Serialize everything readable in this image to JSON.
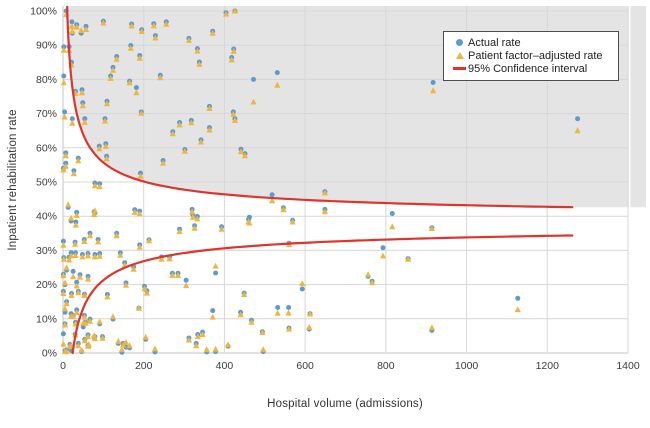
{
  "chart_data": {
    "type": "scatter",
    "xlabel": "Hospital volume (admissions)",
    "ylabel": "Inpatient rehabilitation rate",
    "xlim": [
      0,
      1400
    ],
    "ylim": [
      0,
      100
    ],
    "grid": true,
    "legend_position": "top-right",
    "x_ticks": [
      {
        "v": 0,
        "label": "0"
      },
      {
        "v": 200,
        "label": "200"
      },
      {
        "v": 400,
        "label": "400"
      },
      {
        "v": 600,
        "label": "600"
      },
      {
        "v": 800,
        "label": "800"
      },
      {
        "v": 1000,
        "label": "1000"
      },
      {
        "v": 1200,
        "label": "1200"
      },
      {
        "v": 1400,
        "label": "1400"
      }
    ],
    "y_ticks": [
      {
        "v": 0,
        "label": "0%"
      },
      {
        "v": 10,
        "label": "10%"
      },
      {
        "v": 20,
        "label": "20%"
      },
      {
        "v": 30,
        "label": "30%"
      },
      {
        "v": 40,
        "label": "40%"
      },
      {
        "v": 50,
        "label": "50%"
      },
      {
        "v": 60,
        "label": "60%"
      },
      {
        "v": 70,
        "label": "70%"
      },
      {
        "v": 80,
        "label": "80%"
      },
      {
        "v": 90,
        "label": "90%"
      },
      {
        "v": 100,
        "label": "100%"
      }
    ],
    "legend": {
      "actual_label": "Actual rate",
      "adjusted_label": "Patient factor–adjusted rate",
      "ci_label": "95% Confidence interval"
    },
    "colors": {
      "actual": "#5B9BD3",
      "adjusted": "#F0B53C",
      "ci": "#E0342B",
      "shade": "#E4E4E4",
      "grid": "#D7D7D7",
      "axis": "#C6C6C6",
      "text": "#3C3C3C"
    },
    "ci": {
      "center": 38.5,
      "coef": 230,
      "exp": 0.563,
      "n_min_visible": 10.4,
      "n_max": 1262
    },
    "hospital_columns": [
      "volume_admissions",
      "actual_rate_pct",
      "adjusted_rate_pct"
    ],
    "hospitals": [
      [
        8,
        100,
        99
      ],
      [
        22,
        96.8,
        95.5
      ],
      [
        23,
        93.5,
        94
      ],
      [
        15,
        89.6,
        88.5
      ],
      [
        21,
        85,
        84.2
      ],
      [
        2,
        81,
        79
      ],
      [
        23,
        68.5,
        67.2
      ],
      [
        4,
        70.5,
        69
      ],
      [
        38,
        57,
        56.2
      ],
      [
        27,
        53.3,
        52.4
      ],
      [
        7,
        58.5,
        57.7
      ],
      [
        7,
        55.5,
        54.6
      ],
      [
        13,
        42.6,
        43.3
      ],
      [
        20,
        38.6,
        39.4
      ],
      [
        1,
        32.7,
        31.5
      ],
      [
        20,
        29.3,
        28.4
      ],
      [
        25,
        23.9,
        22.3
      ],
      [
        9,
        24.2,
        24.9
      ],
      [
        5,
        20,
        20.5
      ],
      [
        1,
        18,
        17.4
      ],
      [
        9,
        15,
        14.4
      ],
      [
        5,
        11.9,
        12.9
      ],
      [
        20,
        11.5,
        10.7
      ],
      [
        9,
        0.9,
        0.4
      ],
      [
        21,
        0.7,
        2
      ],
      [
        1,
        5.6,
        2.6
      ],
      [
        17,
        2.5,
        2
      ],
      [
        2,
        89.5,
        88.5
      ],
      [
        1,
        54,
        53.5
      ],
      [
        2,
        27.9,
        27.4
      ],
      [
        1,
        23,
        22.6
      ],
      [
        31,
        76.5,
        75.9
      ],
      [
        47,
        77,
        76.1
      ],
      [
        57,
        95.5,
        94.6
      ],
      [
        34,
        96,
        95.3
      ],
      [
        45,
        93.5,
        94.3
      ],
      [
        49,
        73.2,
        72.3
      ],
      [
        54,
        68.5,
        67.5
      ],
      [
        42,
        22.9,
        22.2
      ],
      [
        34,
        41.1,
        40.2
      ],
      [
        32,
        38.3,
        37.4
      ],
      [
        34,
        20.7,
        19.6
      ],
      [
        31,
        29.3,
        28.5
      ],
      [
        15,
        28,
        27.2
      ],
      [
        48,
        28.8,
        28.1
      ],
      [
        34,
        12.6,
        11.8
      ],
      [
        53,
        33.2,
        32.6
      ],
      [
        30,
        32.4,
        31.8
      ],
      [
        38,
        18,
        17.6
      ],
      [
        21,
        17.4,
        16.8
      ],
      [
        53,
        17.2,
        16.8
      ],
      [
        50,
        7.6,
        8.7
      ],
      [
        31,
        9,
        8.5
      ],
      [
        25,
        11,
        10.7
      ],
      [
        53,
        11,
        10.5
      ],
      [
        30,
        5.5,
        5.3
      ],
      [
        54,
        4,
        3.6
      ],
      [
        38,
        2.8,
        2.1
      ],
      [
        62,
        2.2,
        2
      ],
      [
        46,
        0.4,
        0.8
      ],
      [
        5,
        0.6,
        0.4
      ],
      [
        5,
        8.5,
        8.2
      ],
      [
        62,
        5.3,
        4.8
      ],
      [
        56,
        9,
        8.7
      ],
      [
        79,
        49.7,
        48.9
      ],
      [
        91,
        49.5,
        48.6
      ],
      [
        100,
        97,
        96.5
      ],
      [
        109,
        73.6,
        72.9
      ],
      [
        118,
        81,
        80.3
      ],
      [
        124,
        83.5,
        82.7
      ],
      [
        106,
        61.2,
        60.4
      ],
      [
        90,
        60.5,
        59.7
      ],
      [
        108,
        57.5,
        56.8
      ],
      [
        104,
        68.5,
        67.8
      ],
      [
        77,
        41.3,
        40.5
      ],
      [
        79,
        41,
        41.6
      ],
      [
        87,
        33.2,
        32.5
      ],
      [
        67,
        35,
        34.3
      ],
      [
        79,
        28.8,
        28.1
      ],
      [
        91,
        29.1,
        28.3
      ],
      [
        62,
        22.4,
        21.6
      ],
      [
        62,
        29.1,
        28.4
      ],
      [
        67,
        9.9,
        9.3
      ],
      [
        79,
        4.8,
        4.2
      ],
      [
        98,
        4.8,
        4.3
      ],
      [
        77,
        4.6,
        5.1
      ],
      [
        64,
        2,
        2.5
      ],
      [
        91,
        8.5,
        9.1
      ],
      [
        124,
        9.9,
        10.6
      ],
      [
        110,
        17.1,
        16.4
      ],
      [
        133,
        86.7,
        85.9
      ],
      [
        168,
        89.9,
        89.1
      ],
      [
        170,
        96.2,
        95.6
      ],
      [
        190,
        87,
        86.2
      ],
      [
        195,
        94.5,
        94
      ],
      [
        225,
        96.3,
        95.7
      ],
      [
        256,
        96.8,
        96.1
      ],
      [
        229,
        92.8,
        92.1
      ],
      [
        241,
        81.2,
        80.5
      ],
      [
        182,
        77.6,
        76.1
      ],
      [
        165,
        79.5,
        79
      ],
      [
        133,
        35,
        34.3
      ],
      [
        153,
        26.4,
        25.7
      ],
      [
        178,
        41.9,
        41.1
      ],
      [
        190,
        41.5,
        40.7
      ],
      [
        175,
        25.2,
        24.5
      ],
      [
        156,
        20.5,
        19.8
      ],
      [
        202,
        19.5,
        18.8
      ],
      [
        208,
        18.2,
        17.5
      ],
      [
        188,
        13.1,
        13.1
      ],
      [
        137,
        2.8,
        3.4
      ],
      [
        149,
        2.8,
        2.3
      ],
      [
        156,
        1.7,
        3.1
      ],
      [
        165,
        1.5,
        2.1
      ],
      [
        146,
        0.2,
        1
      ],
      [
        205,
        4,
        4.6
      ],
      [
        228,
        0.3,
        1.2
      ],
      [
        356,
        0.3,
        1
      ],
      [
        378,
        0.4,
        1.1
      ],
      [
        409,
        2,
        2.4
      ],
      [
        244,
        28.1,
        27.4
      ],
      [
        264,
        28.1,
        27.5
      ],
      [
        248,
        56.3,
        55.5
      ],
      [
        192,
        52.6,
        51.7
      ],
      [
        194,
        70.5,
        70.1
      ],
      [
        213,
        33.1,
        32.8
      ],
      [
        190,
        31.6,
        30.9
      ],
      [
        142,
        29.3,
        28.6
      ],
      [
        289,
        67.4,
        66.7
      ],
      [
        272,
        64.7,
        64.1
      ],
      [
        318,
        68,
        67.3
      ],
      [
        363,
        65.9,
        65.2
      ],
      [
        363,
        72.1,
        71.5
      ],
      [
        338,
        85.1,
        84.4
      ],
      [
        333,
        89,
        88.3
      ],
      [
        333,
        39.9,
        39.2
      ],
      [
        312,
        92,
        91.4
      ],
      [
        404,
        99.5,
        99.1
      ],
      [
        426,
        100,
        100
      ],
      [
        371,
        94.1,
        93.5
      ],
      [
        423,
        88.9,
        88.2
      ],
      [
        418,
        86.4,
        85.7
      ],
      [
        422,
        70.5,
        69.8
      ],
      [
        426,
        68.5,
        68
      ],
      [
        441,
        59.6,
        58.9
      ],
      [
        451,
        58.3,
        57.7
      ],
      [
        320,
        42,
        41.3
      ],
      [
        322,
        40.4,
        39.7
      ],
      [
        326,
        37.2,
        36.5
      ],
      [
        289,
        36.2,
        35.5
      ],
      [
        305,
        21.3,
        19.7
      ],
      [
        271,
        23.3,
        22.7
      ],
      [
        285,
        23.3,
        22.7
      ],
      [
        302,
        59.5,
        59
      ],
      [
        342,
        62.3,
        61.7
      ],
      [
        371,
        12.4,
        10.5
      ],
      [
        346,
        6.1,
        5.4
      ],
      [
        330,
        2.8,
        2.1
      ],
      [
        334,
        5.4,
        4.8
      ],
      [
        312,
        4.4,
        3.8
      ],
      [
        378,
        23.4,
        25.4
      ],
      [
        440,
        11.9,
        11.2
      ],
      [
        460,
        39.1,
        38.4
      ],
      [
        467,
        9.6,
        9
      ],
      [
        449,
        17.5,
        17.1
      ],
      [
        393,
        36.9,
        36.2
      ],
      [
        472,
        80,
        73.4
      ],
      [
        531,
        82,
        78.3
      ],
      [
        518,
        46.3,
        44.5
      ],
      [
        546,
        42.5,
        41.9
      ],
      [
        462,
        39.7,
        38
      ],
      [
        649,
        47.2,
        46.8
      ],
      [
        649,
        42,
        41.3
      ],
      [
        569,
        38.8,
        38.3
      ],
      [
        560,
        32.1,
        31.7
      ],
      [
        816,
        40.8,
        36.9
      ],
      [
        914,
        36.6,
        36.4
      ],
      [
        917,
        79.1,
        76.7
      ],
      [
        793,
        30.8,
        28.4
      ],
      [
        855,
        27.6,
        27.4
      ],
      [
        756,
        22.4,
        22.9
      ],
      [
        766,
        21,
        20.6
      ],
      [
        593,
        18.7,
        20.3
      ],
      [
        612,
        11.5,
        11.4
      ],
      [
        532,
        13.3,
        11.6
      ],
      [
        559,
        13.3,
        11.7
      ],
      [
        560,
        7.3,
        7
      ],
      [
        610,
        7,
        7.5
      ],
      [
        494,
        6.2,
        6
      ],
      [
        496,
        0.4,
        1
      ],
      [
        914,
        6.6,
        7.4
      ],
      [
        1127,
        16,
        12.7
      ],
      [
        1275,
        68.5,
        65
      ]
    ]
  }
}
